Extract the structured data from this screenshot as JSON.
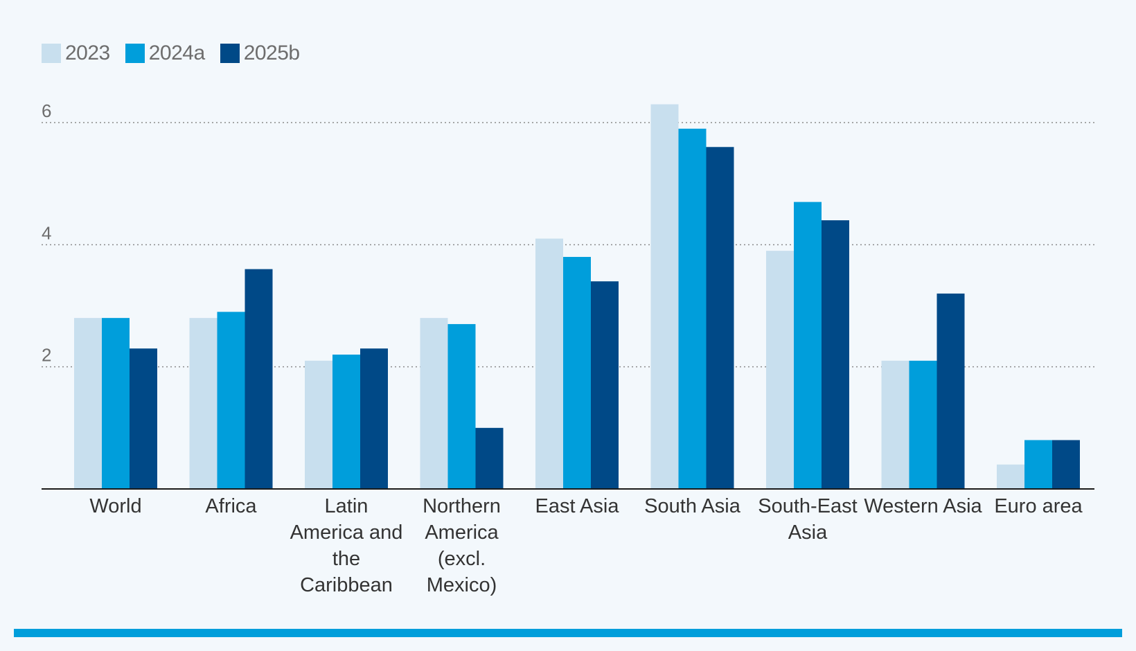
{
  "chart_data": {
    "type": "bar",
    "title": "",
    "xlabel": "",
    "ylabel": "",
    "ylim": [
      0,
      6.5
    ],
    "yticks": [
      2,
      4,
      6
    ],
    "yticks_labels": [
      "2",
      "4",
      "6"
    ],
    "grid": "dotted-horizontal",
    "legend": "top-left",
    "categories": [
      [
        "World"
      ],
      [
        "Africa"
      ],
      [
        "Latin",
        "America and",
        "the",
        "Caribbean"
      ],
      [
        "Northern",
        "America",
        "(excl.",
        "Mexico)"
      ],
      [
        "East Asia"
      ],
      [
        "South Asia"
      ],
      [
        "South-East",
        "Asia"
      ],
      [
        "Western Asia"
      ],
      [
        "Euro area"
      ]
    ],
    "series": [
      {
        "name": "2023",
        "color": "#c8dfee",
        "values": [
          2.8,
          2.8,
          2.1,
          2.8,
          4.1,
          6.3,
          3.9,
          2.1,
          0.4
        ]
      },
      {
        "name": "2024a",
        "color": "#009edb",
        "values": [
          2.8,
          2.9,
          2.2,
          2.7,
          3.8,
          5.9,
          4.7,
          2.1,
          0.8
        ]
      },
      {
        "name": "2025b",
        "color": "#004987",
        "values": [
          2.3,
          3.6,
          2.3,
          1.0,
          3.4,
          5.6,
          4.4,
          3.2,
          0.8
        ]
      }
    ]
  },
  "colors": {
    "background": "#f3f8fc",
    "axis": "#1a1a1a",
    "grid": "#8a8a8a",
    "text": "#333333",
    "tick_text": "#6d6d6d",
    "accent_bar": "#009edb"
  }
}
